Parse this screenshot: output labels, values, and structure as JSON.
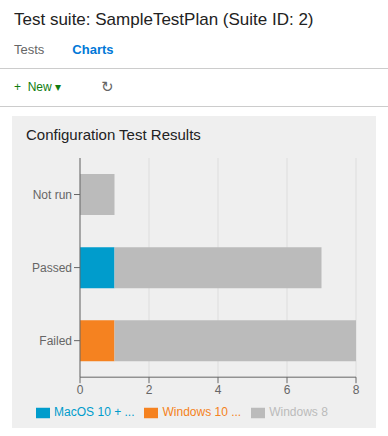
{
  "chart_data": {
    "type": "bar",
    "title": "Configuration Test Results",
    "subtitle": "Test suite: SampleTestPlan (Suite ID: 2)",
    "annotations": [
      "Tests",
      "Charts",
      "+  New ▾",
      "↻"
    ],
    "orientation": "horizontal",
    "stacked": true,
    "categories": [
      "Not run",
      "Passed",
      "Failed"
    ],
    "series": [
      {
        "name": "MacOS 10 + ...",
        "color": "#009CCC",
        "values": [
          0,
          1,
          0
        ]
      },
      {
        "name": "Windows 10 ...",
        "color": "#F58220",
        "values": [
          0,
          0,
          1
        ]
      },
      {
        "name": "Windows 8",
        "color": "#BBBBBB",
        "values": [
          1,
          6,
          7
        ]
      }
    ],
    "xlim": [
      0,
      8
    ],
    "xticks": [
      0,
      2,
      4,
      6,
      8
    ],
    "grid": true,
    "legend": "bottom"
  }
}
